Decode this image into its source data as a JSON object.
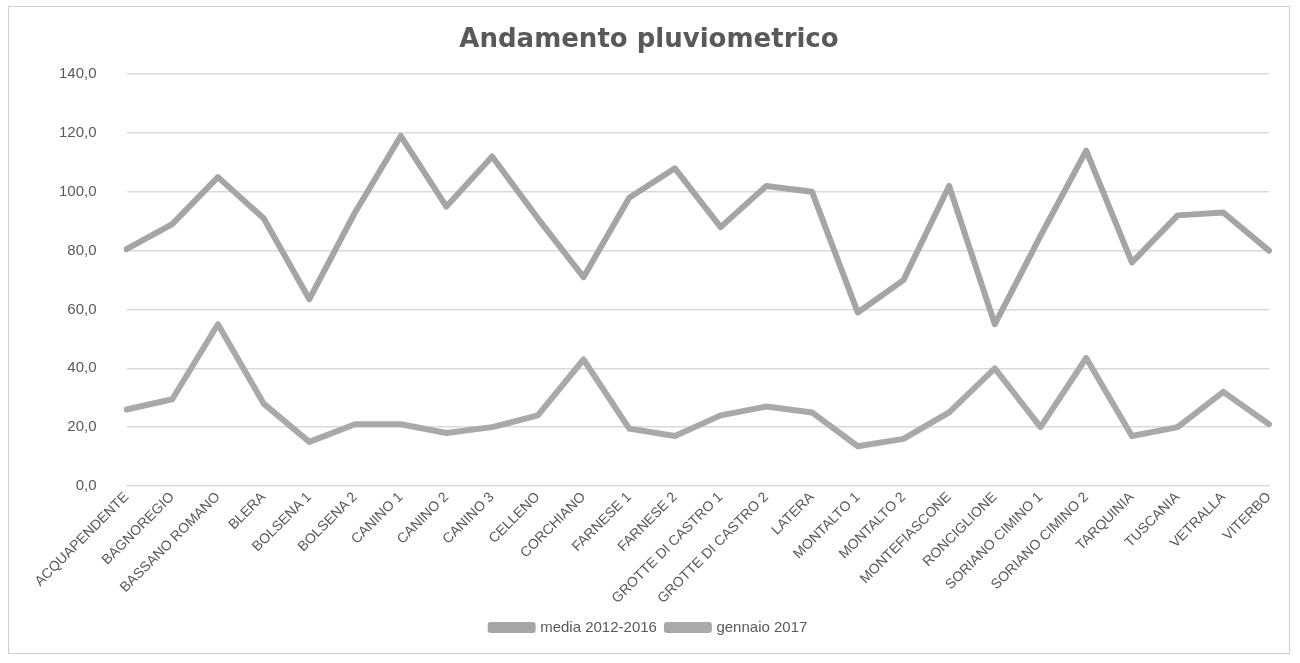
{
  "chart_data": {
    "type": "line",
    "title": "Andamento pluviometrico",
    "categories": [
      "ACQUAPENDENTE",
      "BAGNOREGIO",
      "BASSANO ROMANO",
      "BLERA",
      "BOLSENA 1",
      "BOLSENA 2",
      "CANINO 1",
      "CANINO 2",
      "CANINO 3",
      "CELLENO",
      "CORCHIANO",
      "FARNESE 1",
      "FARNESE 2",
      "GROTTE DI CASTRO 1",
      "GROTTE DI CASTRO 2",
      "LATERA",
      "MONTALTO 1",
      "MONTALTO 2",
      "MONTEFIASCONE",
      "RONCIGLIONE",
      "SORIANO CIMINO 1",
      "SORIANO CIMINO 2",
      "TARQUINIA",
      "TUSCANIA",
      "VETRALLA",
      "VITERBO"
    ],
    "series": [
      {
        "name": "media 2012-2016",
        "color": "#a5a5a5",
        "values": [
          80.5,
          89,
          105,
          91,
          63.5,
          93,
          119,
          95,
          112,
          91,
          71,
          98,
          108,
          88,
          102,
          100,
          59,
          70,
          102,
          55,
          85,
          114,
          76,
          92,
          93,
          80
        ]
      },
      {
        "name": "gennaio 2017",
        "color": "#a9a9a9",
        "values": [
          26,
          29.5,
          55,
          28,
          15,
          21,
          21,
          18,
          20,
          24,
          43,
          19.5,
          17,
          24,
          27,
          25,
          13.5,
          16,
          25,
          40,
          20,
          43.5,
          17,
          20,
          32,
          21
        ]
      }
    ],
    "ylim": [
      0,
      140
    ],
    "yticks": [
      {
        "value": 0,
        "label": "0,0"
      },
      {
        "value": 20,
        "label": "20,0"
      },
      {
        "value": 40,
        "label": "40,0"
      },
      {
        "value": 60,
        "label": "60,0"
      },
      {
        "value": 80,
        "label": "80,0"
      },
      {
        "value": 100,
        "label": "100,0"
      },
      {
        "value": 120,
        "label": "120,0"
      },
      {
        "value": 140,
        "label": "140,0"
      }
    ],
    "grid": "y",
    "legend": "bottom",
    "marker": "none",
    "line_style": "solid"
  }
}
